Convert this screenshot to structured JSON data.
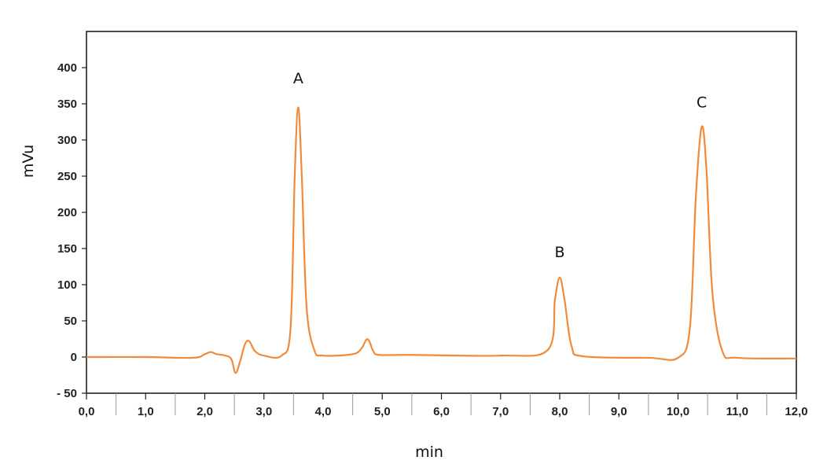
{
  "chart_data": {
    "type": "line",
    "title": "",
    "xlabel": "min",
    "ylabel": "mVu",
    "xlim": [
      0,
      12
    ],
    "ylim": [
      -50,
      450
    ],
    "x_ticks": [
      "0,0",
      "1,0",
      "2,0",
      "3,0",
      "4,0",
      "5,0",
      "6,0",
      "7,0",
      "8,0",
      "9,0",
      "10,0",
      "11,0",
      "12,0"
    ],
    "y_ticks": [
      "400",
      "350",
      "300",
      "250",
      "200",
      "150",
      "100",
      "50",
      "0",
      "- 50"
    ],
    "grid": false,
    "line_color": "#F08A3C",
    "series": [
      {
        "x": [
          0.0,
          1.0,
          1.8,
          2.0,
          2.1,
          2.2,
          2.35,
          2.45,
          2.52,
          2.6,
          2.68,
          2.75,
          2.85,
          3.0,
          3.3,
          3.45,
          3.52,
          3.58,
          3.64,
          3.72,
          3.85,
          4.0,
          4.5,
          4.65,
          4.73,
          4.78,
          4.85,
          4.95,
          5.5,
          7.0,
          7.8,
          7.92,
          8.0,
          8.08,
          8.2,
          8.4,
          9.5,
          10.0,
          10.2,
          10.3,
          10.4,
          10.48,
          10.58,
          10.75,
          11.0,
          12.0
        ],
        "y": [
          0,
          0,
          -1,
          4,
          7,
          4,
          2,
          -3,
          -22,
          -5,
          18,
          22,
          8,
          2,
          2,
          40,
          250,
          345,
          250,
          70,
          10,
          2,
          4,
          12,
          24,
          22,
          8,
          3,
          3,
          2,
          10,
          80,
          110,
          80,
          15,
          1,
          -1,
          -1,
          40,
          220,
          318,
          260,
          90,
          8,
          -1,
          -2
        ]
      }
    ],
    "annotations": [
      {
        "text": "A",
        "x": 3.58,
        "y": 378
      },
      {
        "text": "B",
        "x": 8.0,
        "y": 138
      },
      {
        "text": "C",
        "x": 10.4,
        "y": 345
      }
    ]
  }
}
